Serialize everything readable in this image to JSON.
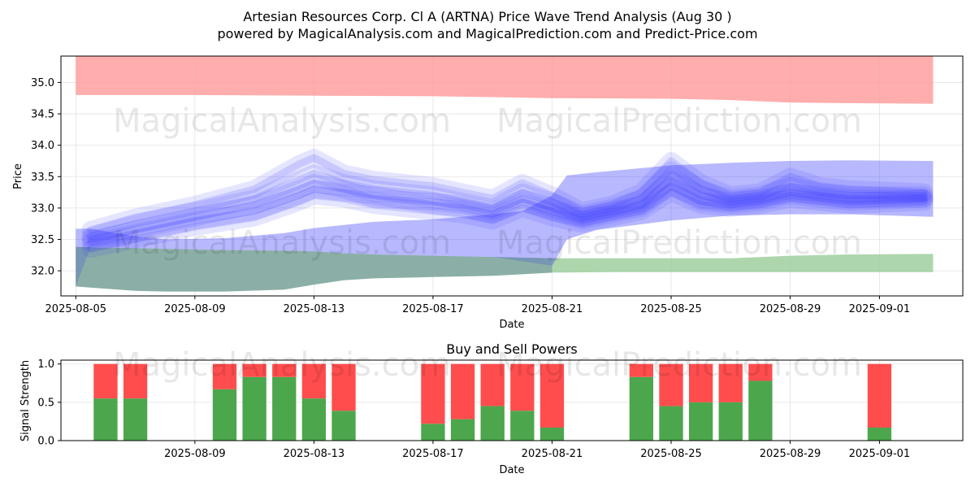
{
  "title": "Artesian Resources Corp. Cl A (ARTNA) Price Wave Trend Analysis (Aug 30 )",
  "subtitle": "powered by MagicalAnalysis.com and MagicalPrediction.com and Predict-Price.com",
  "watermarks": [
    "MagicalAnalysis.com",
    "MagicalPrediction.com"
  ],
  "colors": {
    "upper_band": "#ff9999",
    "lower_band": "#99cc99",
    "wave": "#3333ff",
    "blue_green_overlap": "#6f8fa0",
    "buy": "#4ca64c",
    "sell": "#ff4d4d"
  },
  "chart_data": [
    {
      "type": "area",
      "name": "price-wave",
      "xlabel": "Date",
      "ylabel": "Price",
      "start_date": "2025-08-05",
      "end_date": "2025-09-03",
      "xlim_days": [
        -0.5,
        29.8
      ],
      "ylim": [
        31.6,
        35.42
      ],
      "grid": true,
      "x_ticks": [
        {
          "day": 0,
          "label": "2025-08-05"
        },
        {
          "day": 4,
          "label": "2025-08-09"
        },
        {
          "day": 8,
          "label": "2025-08-13"
        },
        {
          "day": 12,
          "label": "2025-08-17"
        },
        {
          "day": 16,
          "label": "2025-08-21"
        },
        {
          "day": 20,
          "label": "2025-08-25"
        },
        {
          "day": 24,
          "label": "2025-08-29"
        },
        {
          "day": 27,
          "label": "2025-09-01"
        }
      ],
      "y_ticks": [
        32.0,
        32.5,
        33.0,
        33.5,
        34.0,
        34.5,
        35.0
      ],
      "upper_band": {
        "days": [
          0,
          4,
          8,
          12,
          16,
          20,
          22,
          24,
          26,
          28.8
        ],
        "top": [
          35.42,
          35.42,
          35.42,
          35.42,
          35.42,
          35.42,
          35.42,
          35.42,
          35.42,
          35.42
        ],
        "bottom": [
          34.8,
          34.8,
          34.79,
          34.78,
          34.75,
          34.74,
          34.72,
          34.68,
          34.67,
          34.66
        ]
      },
      "lower_band": {
        "days": [
          0,
          2,
          3,
          5,
          7,
          8,
          9,
          10,
          12,
          14,
          16,
          18,
          20,
          22,
          24,
          26,
          28.8
        ],
        "top": [
          32.38,
          32.36,
          32.35,
          32.33,
          32.32,
          32.31,
          32.28,
          32.26,
          32.24,
          32.22,
          32.2,
          32.2,
          32.2,
          32.2,
          32.24,
          32.26,
          32.27
        ],
        "bottom": [
          31.75,
          31.68,
          31.67,
          31.67,
          31.7,
          31.78,
          31.85,
          31.88,
          31.9,
          31.92,
          31.97,
          31.98,
          31.98,
          31.98,
          31.98,
          31.98,
          31.98
        ]
      },
      "wave_band_lower": {
        "days": [
          0,
          0.5,
          2,
          3,
          5,
          7,
          8,
          9,
          10,
          12,
          14,
          15,
          16,
          16.5,
          17.5,
          20,
          22,
          24,
          26,
          28.8
        ],
        "top": [
          32.67,
          32.67,
          32.55,
          32.5,
          32.52,
          32.6,
          32.68,
          32.73,
          32.78,
          32.82,
          32.9,
          32.95,
          33.2,
          33.52,
          33.57,
          33.68,
          33.72,
          33.75,
          33.76,
          33.75
        ],
        "bottom": [
          31.75,
          32.38,
          32.36,
          32.35,
          32.33,
          32.32,
          32.31,
          32.28,
          32.26,
          32.24,
          32.22,
          32.15,
          32.08,
          32.5,
          32.65,
          32.8,
          32.88,
          32.9,
          32.9,
          32.86
        ]
      },
      "wave_strands": [
        {
          "days": [
            0.5,
            2,
            4,
            6,
            7.5,
            8,
            9,
            10,
            12,
            13,
            14,
            15,
            16,
            17,
            18,
            19,
            20,
            21,
            22,
            23,
            24,
            25,
            26,
            28.5
          ],
          "values": [
            32.45,
            32.6,
            32.8,
            32.95,
            33.2,
            33.3,
            33.25,
            33.2,
            33.05,
            33.0,
            32.9,
            33.1,
            32.95,
            32.8,
            32.9,
            33.0,
            33.35,
            33.1,
            33.05,
            33.1,
            33.2,
            33.15,
            33.1,
            33.15
          ]
        },
        {
          "days": [
            0.5,
            2,
            4,
            6,
            7.5,
            8,
            9,
            10,
            12,
            13,
            14,
            15,
            16,
            17,
            18,
            19,
            20,
            21,
            22,
            23,
            24,
            25,
            26,
            28.5
          ],
          "values": [
            32.55,
            32.75,
            32.95,
            33.15,
            33.45,
            33.55,
            33.4,
            33.3,
            33.2,
            33.1,
            33.0,
            33.25,
            33.1,
            32.9,
            33.0,
            33.15,
            33.6,
            33.3,
            33.15,
            33.2,
            33.35,
            33.25,
            33.2,
            33.2
          ]
        },
        {
          "days": [
            0.5,
            2,
            4,
            6,
            7.5,
            8,
            9,
            10,
            12,
            13,
            14,
            15,
            16,
            17,
            18,
            19,
            20,
            21,
            22,
            23,
            24,
            25,
            26,
            28.5
          ],
          "values": [
            32.35,
            32.5,
            32.7,
            32.85,
            33.1,
            33.2,
            33.15,
            33.05,
            32.95,
            32.9,
            32.8,
            33.0,
            32.85,
            32.75,
            32.85,
            32.95,
            33.25,
            33.05,
            33.0,
            33.05,
            33.15,
            33.1,
            33.05,
            33.1
          ]
        },
        {
          "days": [
            0.5,
            2,
            4,
            6,
            7.5,
            8,
            9,
            10,
            12,
            13,
            14,
            15,
            16,
            17,
            18,
            19,
            20,
            21,
            22,
            23,
            24,
            25,
            26,
            28.5
          ],
          "values": [
            32.65,
            32.85,
            33.05,
            33.3,
            33.7,
            33.8,
            33.55,
            33.45,
            33.35,
            33.25,
            33.15,
            33.4,
            33.2,
            32.95,
            33.05,
            33.25,
            33.75,
            33.4,
            33.2,
            33.25,
            33.5,
            33.35,
            33.3,
            33.25
          ]
        },
        {
          "days": [
            0.5,
            2,
            4,
            6,
            7.5,
            8,
            9,
            10,
            12,
            13,
            14,
            15,
            16,
            17,
            18,
            19,
            20,
            21,
            22,
            23,
            24,
            25,
            26,
            28.5
          ],
          "values": [
            32.5,
            32.65,
            32.85,
            33.05,
            33.3,
            33.4,
            33.3,
            33.15,
            33.1,
            33.05,
            32.95,
            33.15,
            33.0,
            32.85,
            32.95,
            33.05,
            33.45,
            33.2,
            33.1,
            33.15,
            33.25,
            33.2,
            33.15,
            33.15
          ]
        }
      ]
    },
    {
      "type": "bar",
      "name": "buy-sell-powers",
      "title": "Buy and Sell Powers",
      "xlabel": "Date",
      "ylabel": "Signal Strength",
      "xlim_days": [
        -0.5,
        29.8
      ],
      "ylim": [
        0,
        1.05
      ],
      "y_ticks": [
        0.0,
        0.5,
        1.0
      ],
      "x_ticks": [
        {
          "day": 4,
          "label": "2025-08-09"
        },
        {
          "day": 8,
          "label": "2025-08-13"
        },
        {
          "day": 12,
          "label": "2025-08-17"
        },
        {
          "day": 16,
          "label": "2025-08-21"
        },
        {
          "day": 20,
          "label": "2025-08-25"
        },
        {
          "day": 24,
          "label": "2025-08-29"
        },
        {
          "day": 27,
          "label": "2025-09-01"
        }
      ],
      "bars": [
        {
          "date": "2025-08-06",
          "day": 1,
          "buy": 0.55,
          "sell": 0.45
        },
        {
          "date": "2025-08-07",
          "day": 2,
          "buy": 0.55,
          "sell": 0.45
        },
        {
          "date": "2025-08-10",
          "day": 5,
          "buy": 0.67,
          "sell": 0.33
        },
        {
          "date": "2025-08-11",
          "day": 6,
          "buy": 0.83,
          "sell": 0.17
        },
        {
          "date": "2025-08-12",
          "day": 7,
          "buy": 0.83,
          "sell": 0.17
        },
        {
          "date": "2025-08-13",
          "day": 8,
          "buy": 0.55,
          "sell": 0.45
        },
        {
          "date": "2025-08-14",
          "day": 9,
          "buy": 0.39,
          "sell": 0.61
        },
        {
          "date": "2025-08-17",
          "day": 12,
          "buy": 0.22,
          "sell": 0.78
        },
        {
          "date": "2025-08-18",
          "day": 13,
          "buy": 0.28,
          "sell": 0.72
        },
        {
          "date": "2025-08-19",
          "day": 14,
          "buy": 0.45,
          "sell": 0.55
        },
        {
          "date": "2025-08-20",
          "day": 15,
          "buy": 0.39,
          "sell": 0.61
        },
        {
          "date": "2025-08-21",
          "day": 16,
          "buy": 0.17,
          "sell": 0.83
        },
        {
          "date": "2025-08-24",
          "day": 19,
          "buy": 0.83,
          "sell": 0.17
        },
        {
          "date": "2025-08-25",
          "day": 20,
          "buy": 0.45,
          "sell": 0.55
        },
        {
          "date": "2025-08-26",
          "day": 21,
          "buy": 0.5,
          "sell": 0.5
        },
        {
          "date": "2025-08-27",
          "day": 22,
          "buy": 0.5,
          "sell": 0.5
        },
        {
          "date": "2025-08-28",
          "day": 23,
          "buy": 0.78,
          "sell": 0.22
        },
        {
          "date": "2025-09-01",
          "day": 27,
          "buy": 0.17,
          "sell": 0.83
        }
      ]
    }
  ]
}
